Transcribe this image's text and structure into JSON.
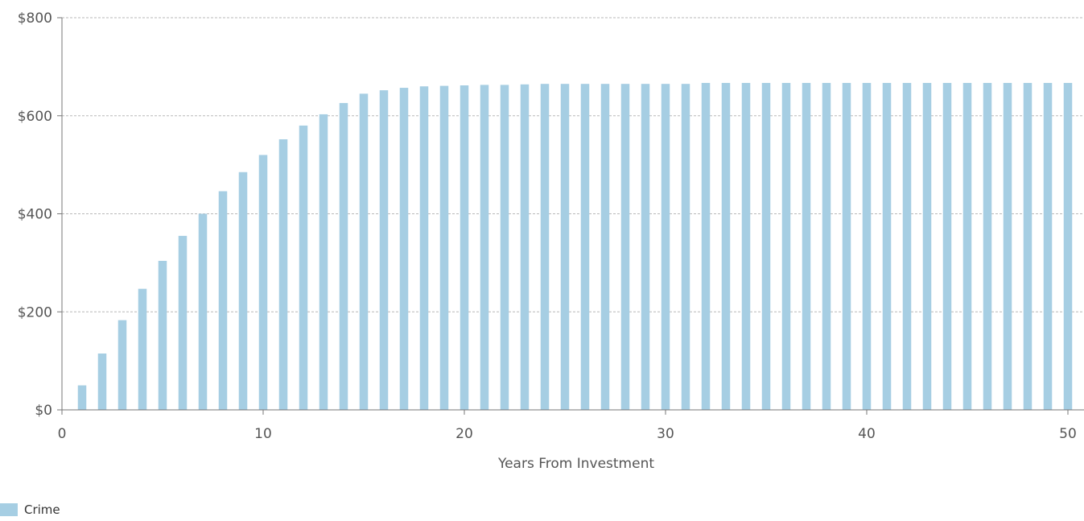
{
  "chart_data": {
    "type": "bar",
    "title": "",
    "xlabel": "Years From Investment",
    "ylabel": "",
    "x": [
      1,
      2,
      3,
      4,
      5,
      6,
      7,
      8,
      9,
      10,
      11,
      12,
      13,
      14,
      15,
      16,
      17,
      18,
      19,
      20,
      21,
      22,
      23,
      24,
      25,
      26,
      27,
      28,
      29,
      30,
      31,
      32,
      33,
      34,
      35,
      36,
      37,
      38,
      39,
      40,
      41,
      42,
      43,
      44,
      45,
      46,
      47,
      48,
      49,
      50
    ],
    "series": [
      {
        "name": "Crime",
        "color": "#a6cee3",
        "values": [
          50,
          115,
          183,
          247,
          304,
          355,
          400,
          446,
          485,
          520,
          552,
          580,
          603,
          626,
          645,
          652,
          657,
          660,
          661,
          662,
          663,
          663,
          664,
          665,
          665,
          665,
          665,
          665,
          665,
          665,
          665,
          667,
          667,
          667,
          667,
          667,
          667,
          667,
          667,
          667,
          667,
          667,
          667,
          667,
          667,
          667,
          667,
          667,
          667,
          667
        ]
      }
    ],
    "xlim": [
      0,
      50.8
    ],
    "ylim": [
      0,
      800
    ],
    "xticks": [
      0,
      10,
      20,
      30,
      40,
      50
    ],
    "xtick_labels": [
      "0",
      "10",
      "20",
      "30",
      "40",
      "50"
    ],
    "yticks": [
      0,
      200,
      400,
      600,
      800
    ],
    "ytick_labels": [
      "$0",
      "$200",
      "$400",
      "$600",
      "$800"
    ],
    "grid": "horizontal dashed",
    "legend_position": "bottom-left"
  }
}
